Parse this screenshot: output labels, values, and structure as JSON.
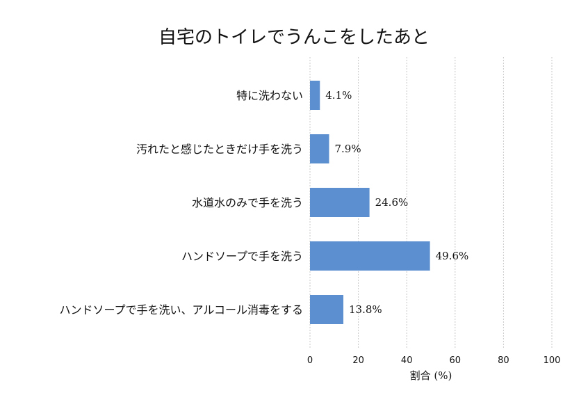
{
  "chart_data": {
    "type": "bar",
    "orientation": "horizontal",
    "title": "自宅のトイレでうんこをしたあと",
    "xlabel": "割合 (%)",
    "ylabel": "",
    "categories": [
      "特に洗わない",
      "汚れたと感じたときだけ手を洗う",
      "水道水のみで手を洗う",
      "ハンドソープで手を洗う",
      "ハンドソープで手を洗い、アルコール消毒をする"
    ],
    "values": [
      4.1,
      7.9,
      24.6,
      49.6,
      13.8
    ],
    "value_labels": [
      "4.1%",
      "7.9%",
      "24.6%",
      "49.6%",
      "13.8%"
    ],
    "xlim": [
      0,
      100
    ],
    "xticks": [
      "0",
      "20",
      "40",
      "60",
      "80",
      "100"
    ],
    "bar_color": "#5b8fd0",
    "grid": "vertical dashed"
  }
}
